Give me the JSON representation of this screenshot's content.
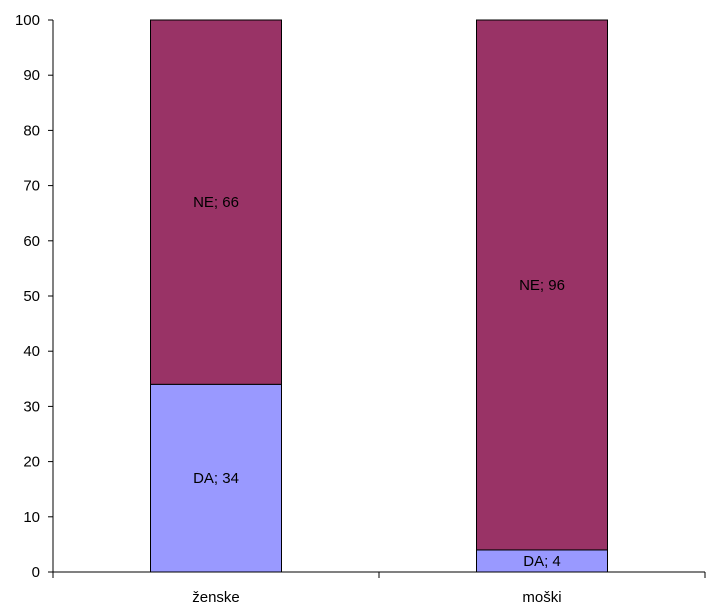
{
  "chart_data": {
    "type": "bar",
    "stacked": true,
    "categories": [
      "ženske",
      "moški"
    ],
    "series": [
      {
        "name": "DA",
        "values": [
          34,
          4
        ],
        "color": "#9999ff"
      },
      {
        "name": "NE",
        "values": [
          66,
          96
        ],
        "color": "#993366"
      }
    ],
    "data_labels": [
      [
        "DA; 34",
        "DA; 4"
      ],
      [
        "NE; 66",
        "NE; 96"
      ]
    ],
    "ylim": [
      0,
      100
    ],
    "yticks": [
      0,
      10,
      20,
      30,
      40,
      50,
      60,
      70,
      80,
      90,
      100
    ],
    "grid": false,
    "legend": "none"
  }
}
